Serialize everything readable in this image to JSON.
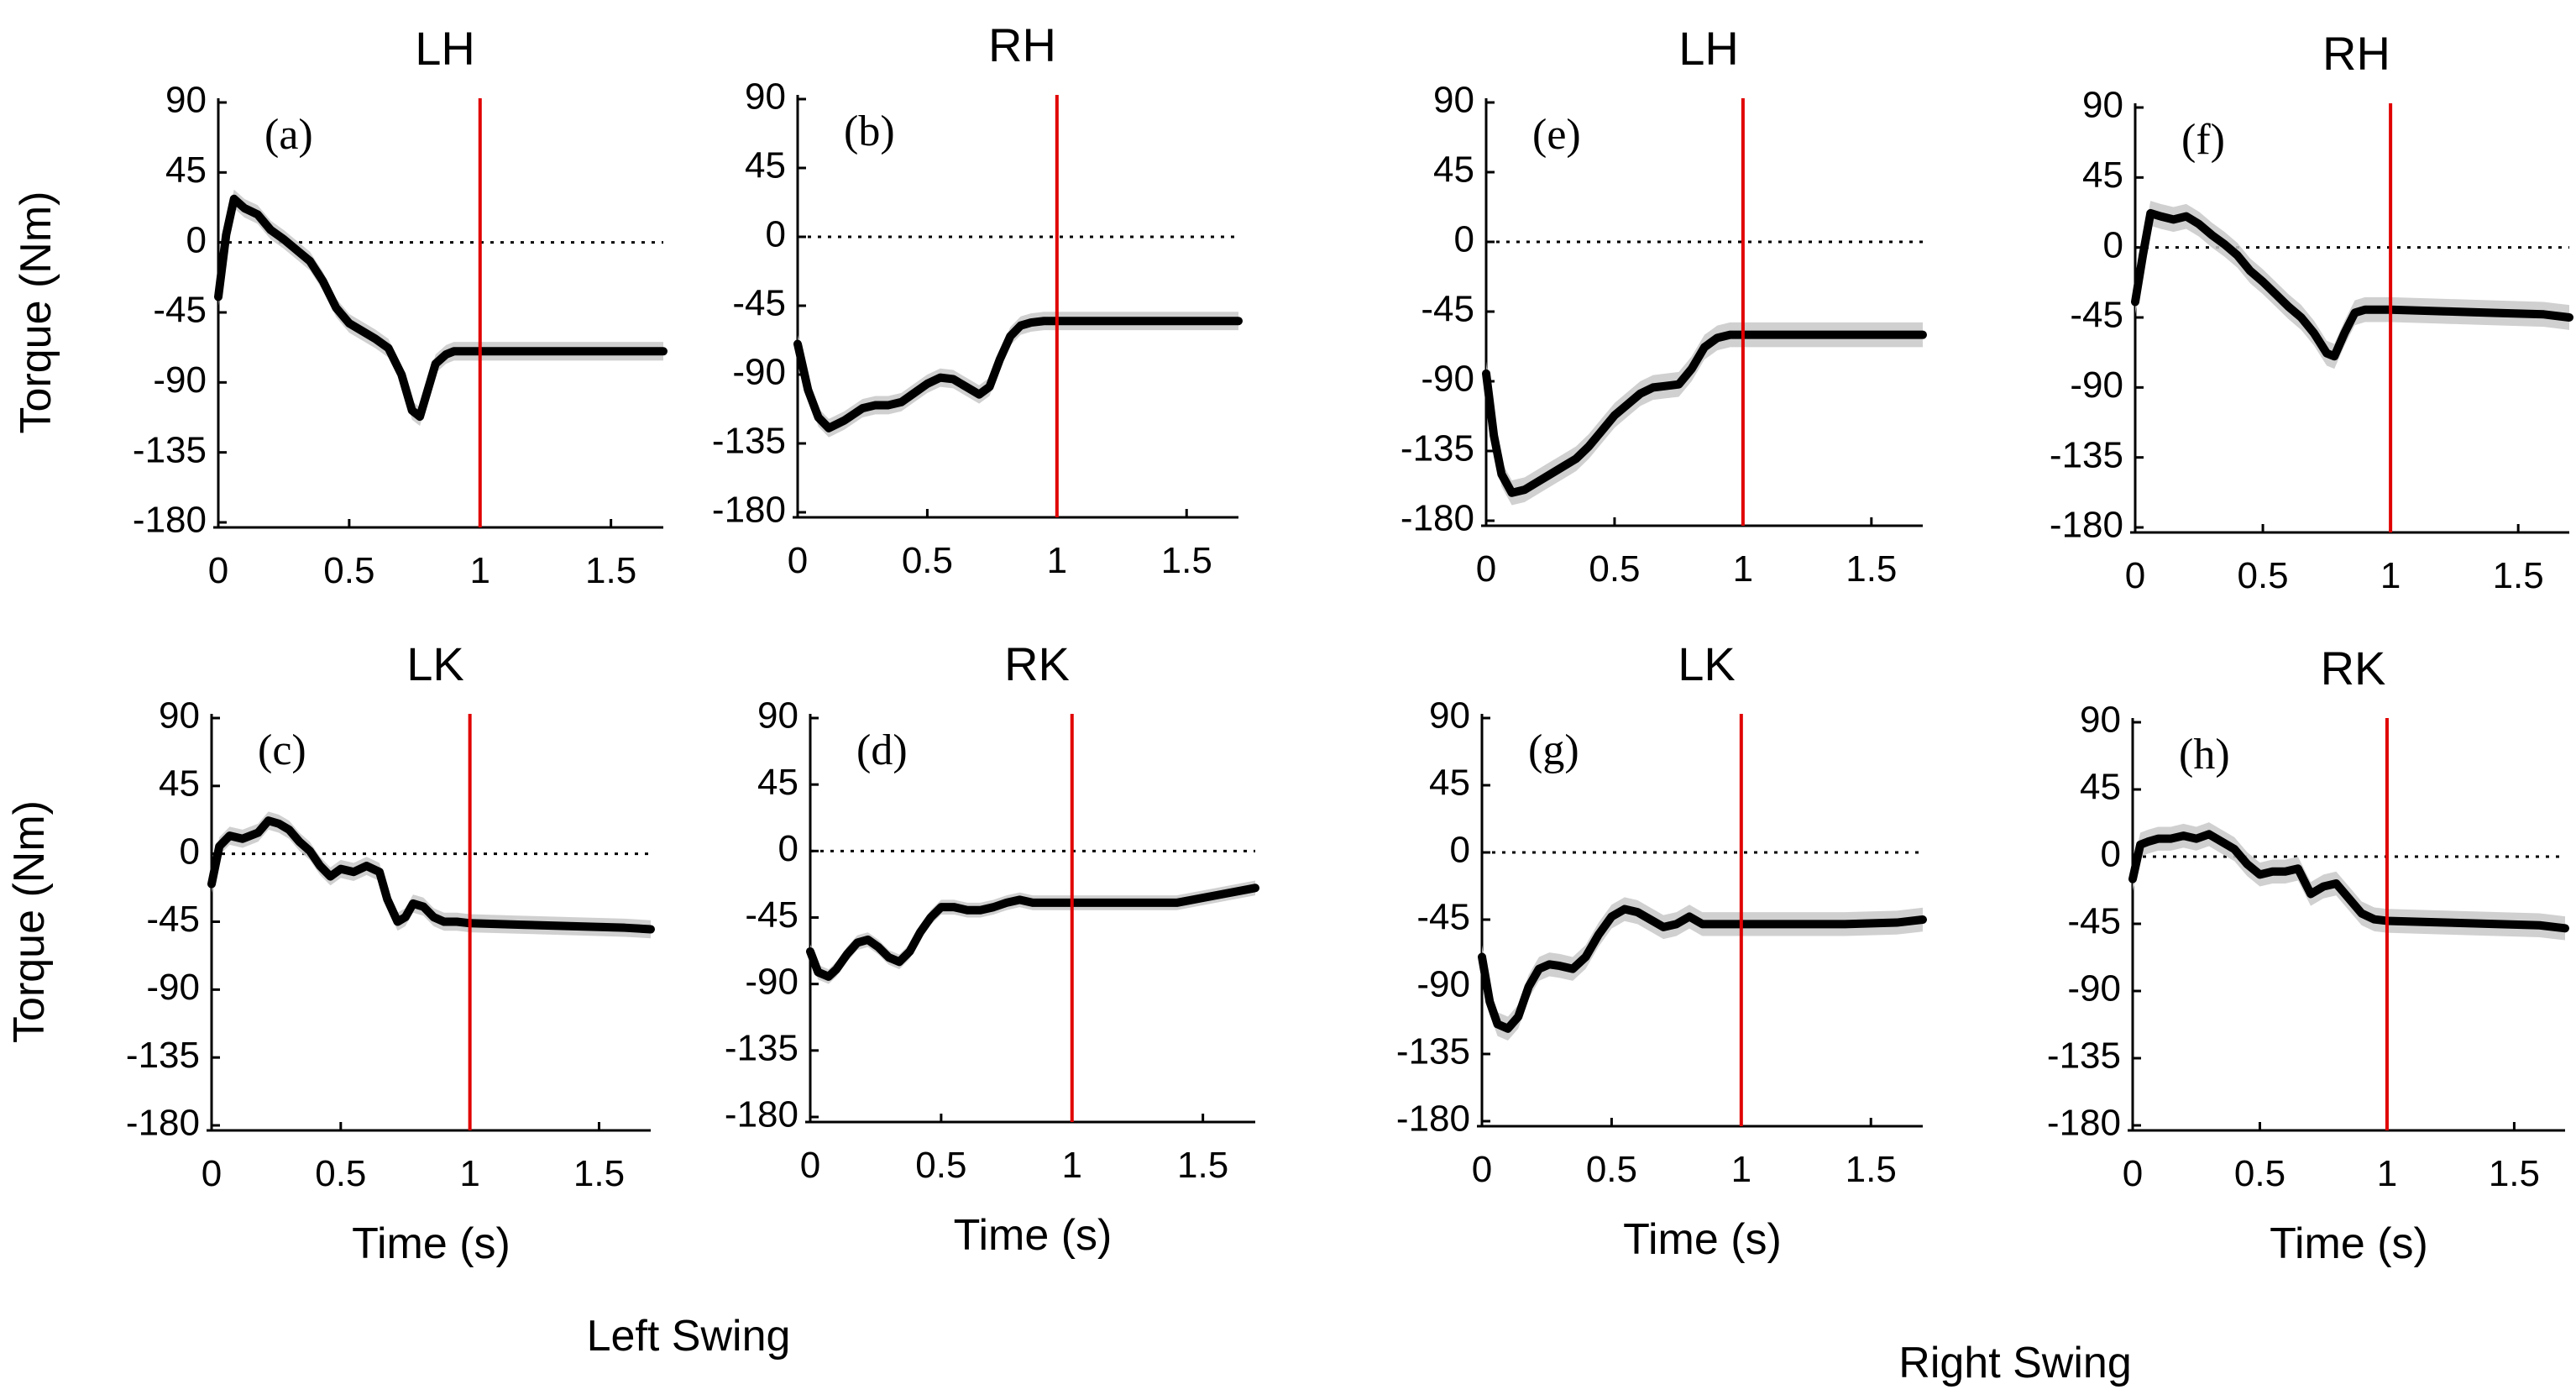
{
  "group_labels": {
    "left": "Left Swing",
    "right": "Right Swing"
  },
  "colors": {
    "reference_line": "#e00000",
    "mean_curve": "#000000",
    "band": "#c8c8c8"
  },
  "chart_data": [
    {
      "id": "a",
      "label": "(a)",
      "title": "LH",
      "type": "line",
      "ylabel": "Torque (Nm)",
      "xlabel": "",
      "xlim": [
        0,
        1.7
      ],
      "ylim": [
        -180,
        90
      ],
      "xticks": [
        0,
        0.5,
        1,
        1.5
      ],
      "xtick_labels": [
        "0",
        "0.5",
        "1",
        "1.5"
      ],
      "yticks": [
        90,
        45,
        0,
        -45,
        -90,
        -135,
        -180
      ],
      "ytick_labels": [
        "90",
        "45",
        "0",
        "-45",
        "-90",
        "-135",
        "-180"
      ],
      "reference_x": 1,
      "zero_line": true,
      "series": [
        {
          "x": [
            0,
            0.03,
            0.06,
            0.1,
            0.15,
            0.2,
            0.25,
            0.3,
            0.35,
            0.4,
            0.45,
            0.5,
            0.55,
            0.6,
            0.65,
            0.7,
            0.74,
            0.77,
            0.8,
            0.83,
            0.87,
            0.9,
            0.95,
            1.0,
            1.2,
            1.4,
            1.6,
            1.7
          ],
          "y": [
            -35,
            5,
            28,
            22,
            18,
            8,
            2,
            -5,
            -12,
            -25,
            -42,
            -52,
            -57,
            -62,
            -68,
            -85,
            -108,
            -112,
            -95,
            -78,
            -72,
            -70,
            -70,
            -70,
            -70,
            -70,
            -70,
            -70
          ],
          "band": 6
        }
      ]
    },
    {
      "id": "b",
      "label": "(b)",
      "title": "RH",
      "type": "line",
      "ylabel": "",
      "xlabel": "",
      "xlim": [
        0,
        1.7
      ],
      "ylim": [
        -180,
        90
      ],
      "xticks": [
        0,
        0.5,
        1,
        1.5
      ],
      "xtick_labels": [
        "0",
        "0.5",
        "1",
        "1.5"
      ],
      "yticks": [
        90,
        45,
        0,
        -45,
        -90,
        -135,
        -180
      ],
      "ytick_labels": [
        "90",
        "45",
        "0",
        "-45",
        "-90",
        "-135",
        "-180"
      ],
      "reference_x": 1,
      "zero_line": true,
      "series": [
        {
          "x": [
            0,
            0.04,
            0.08,
            0.12,
            0.18,
            0.25,
            0.3,
            0.35,
            0.4,
            0.45,
            0.5,
            0.55,
            0.6,
            0.65,
            0.7,
            0.74,
            0.78,
            0.82,
            0.86,
            0.9,
            0.95,
            1.0,
            1.3,
            1.7
          ],
          "y": [
            -70,
            -100,
            -118,
            -125,
            -120,
            -112,
            -110,
            -110,
            -108,
            -102,
            -96,
            -92,
            -93,
            -98,
            -103,
            -98,
            -80,
            -65,
            -58,
            -56,
            -55,
            -55,
            -55,
            -55
          ],
          "band": 6
        }
      ]
    },
    {
      "id": "c",
      "label": "(c)",
      "title": "LK",
      "type": "line",
      "ylabel": "Torque (Nm)",
      "xlabel": "Time (s)",
      "xlim": [
        0,
        1.7
      ],
      "ylim": [
        -180,
        90
      ],
      "xticks": [
        0,
        0.5,
        1,
        1.5
      ],
      "xtick_labels": [
        "0",
        "0.5",
        "1",
        "1.5"
      ],
      "yticks": [
        90,
        45,
        0,
        -45,
        -90,
        -135,
        -180
      ],
      "ytick_labels": [
        "90",
        "45",
        "0",
        "-45",
        "-90",
        "-135",
        "-180"
      ],
      "reference_x": 1,
      "zero_line": true,
      "series": [
        {
          "x": [
            0,
            0.03,
            0.07,
            0.12,
            0.18,
            0.22,
            0.26,
            0.3,
            0.34,
            0.38,
            0.42,
            0.46,
            0.5,
            0.55,
            0.6,
            0.65,
            0.68,
            0.72,
            0.75,
            0.78,
            0.82,
            0.86,
            0.9,
            0.95,
            1.0,
            1.2,
            1.4,
            1.6,
            1.7
          ],
          "y": [
            -20,
            5,
            12,
            10,
            14,
            22,
            20,
            16,
            8,
            2,
            -8,
            -15,
            -10,
            -12,
            -8,
            -12,
            -30,
            -45,
            -42,
            -33,
            -35,
            -42,
            -45,
            -45,
            -46,
            -47,
            -48,
            -49,
            -50
          ],
          "band": 6
        }
      ]
    },
    {
      "id": "d",
      "label": "(d)",
      "title": "RK",
      "type": "line",
      "ylabel": "",
      "xlabel": "Time (s)",
      "xlim": [
        0,
        1.7
      ],
      "ylim": [
        -180,
        90
      ],
      "xticks": [
        0,
        0.5,
        1,
        1.5
      ],
      "xtick_labels": [
        "0",
        "0.5",
        "1",
        "1.5"
      ],
      "yticks": [
        90,
        45,
        0,
        -45,
        -90,
        -135,
        -180
      ],
      "ytick_labels": [
        "90",
        "45",
        "0",
        "-45",
        "-90",
        "-135",
        "-180"
      ],
      "reference_x": 1,
      "zero_line": true,
      "series": [
        {
          "x": [
            0,
            0.03,
            0.07,
            0.1,
            0.14,
            0.18,
            0.22,
            0.26,
            0.3,
            0.34,
            0.38,
            0.42,
            0.46,
            0.5,
            0.55,
            0.6,
            0.65,
            0.7,
            0.75,
            0.8,
            0.85,
            0.9,
            0.95,
            1.0,
            1.2,
            1.4,
            1.55,
            1.7
          ],
          "y": [
            -68,
            -82,
            -85,
            -80,
            -70,
            -62,
            -60,
            -65,
            -72,
            -75,
            -68,
            -55,
            -45,
            -38,
            -38,
            -40,
            -40,
            -38,
            -35,
            -33,
            -35,
            -35,
            -35,
            -35,
            -35,
            -35,
            -30,
            -25
          ],
          "band": 5
        }
      ]
    },
    {
      "id": "e",
      "label": "(e)",
      "title": "LH",
      "type": "line",
      "ylabel": "",
      "xlabel": "",
      "xlim": [
        0,
        1.7
      ],
      "ylim": [
        -180,
        90
      ],
      "xticks": [
        0,
        0.5,
        1,
        1.5
      ],
      "xtick_labels": [
        "0",
        "0.5",
        "1",
        "1.5"
      ],
      "yticks": [
        90,
        45,
        0,
        -45,
        -90,
        -135,
        -180
      ],
      "ytick_labels": [
        "90",
        "45",
        "0",
        "-45",
        "-90",
        "-135",
        "-180"
      ],
      "reference_x": 1,
      "zero_line": true,
      "series": [
        {
          "x": [
            0,
            0.03,
            0.06,
            0.1,
            0.15,
            0.2,
            0.25,
            0.3,
            0.35,
            0.4,
            0.45,
            0.5,
            0.55,
            0.6,
            0.65,
            0.7,
            0.75,
            0.8,
            0.85,
            0.9,
            0.95,
            1.0,
            1.3,
            1.7
          ],
          "y": [
            -85,
            -125,
            -150,
            -162,
            -160,
            -155,
            -150,
            -145,
            -140,
            -132,
            -122,
            -112,
            -105,
            -98,
            -94,
            -93,
            -92,
            -82,
            -68,
            -62,
            -60,
            -60,
            -60,
            -60
          ],
          "band": 8
        }
      ]
    },
    {
      "id": "f",
      "label": "(f)",
      "title": "RH",
      "type": "line",
      "ylabel": "",
      "xlabel": "",
      "xlim": [
        0,
        1.7
      ],
      "ylim": [
        -180,
        90
      ],
      "xticks": [
        0,
        0.5,
        1,
        1.5
      ],
      "xtick_labels": [
        "0",
        "0.5",
        "1",
        "1.5"
      ],
      "yticks": [
        90,
        45,
        0,
        -45,
        -90,
        -135,
        -180
      ],
      "ytick_labels": [
        "90",
        "45",
        "0",
        "-45",
        "-90",
        "-135",
        "-180"
      ],
      "reference_x": 1,
      "zero_line": true,
      "series": [
        {
          "x": [
            0,
            0.03,
            0.06,
            0.1,
            0.15,
            0.2,
            0.25,
            0.3,
            0.35,
            0.4,
            0.45,
            0.5,
            0.55,
            0.6,
            0.65,
            0.7,
            0.75,
            0.78,
            0.82,
            0.86,
            0.9,
            0.95,
            1.0,
            1.2,
            1.4,
            1.6,
            1.7
          ],
          "y": [
            -35,
            -5,
            22,
            20,
            18,
            20,
            15,
            8,
            2,
            -5,
            -15,
            -22,
            -30,
            -38,
            -45,
            -55,
            -68,
            -70,
            -55,
            -42,
            -40,
            -40,
            -40,
            -41,
            -42,
            -43,
            -45
          ],
          "band": 8
        }
      ]
    },
    {
      "id": "g",
      "label": "(g)",
      "title": "LK",
      "type": "line",
      "ylabel": "",
      "xlabel": "Time (s)",
      "xlim": [
        0,
        1.7
      ],
      "ylim": [
        -180,
        90
      ],
      "xticks": [
        0,
        0.5,
        1,
        1.5
      ],
      "xtick_labels": [
        "0",
        "0.5",
        "1",
        "1.5"
      ],
      "yticks": [
        90,
        45,
        0,
        -45,
        -90,
        -135,
        -180
      ],
      "ytick_labels": [
        "90",
        "45",
        "0",
        "-45",
        "-90",
        "-135",
        "-180"
      ],
      "reference_x": 1,
      "zero_line": true,
      "series": [
        {
          "x": [
            0,
            0.03,
            0.06,
            0.1,
            0.14,
            0.18,
            0.22,
            0.26,
            0.3,
            0.35,
            0.4,
            0.45,
            0.5,
            0.55,
            0.6,
            0.65,
            0.7,
            0.75,
            0.8,
            0.85,
            0.9,
            0.95,
            1.0,
            1.2,
            1.4,
            1.6,
            1.7
          ],
          "y": [
            -70,
            -100,
            -115,
            -118,
            -110,
            -90,
            -78,
            -75,
            -76,
            -78,
            -70,
            -55,
            -43,
            -38,
            -40,
            -45,
            -50,
            -48,
            -43,
            -48,
            -48,
            -48,
            -48,
            -48,
            -48,
            -47,
            -45
          ],
          "band": 8
        }
      ]
    },
    {
      "id": "h",
      "label": "(h)",
      "title": "RK",
      "type": "line",
      "ylabel": "",
      "xlabel": "Time (s)",
      "xlim": [
        0,
        1.7
      ],
      "ylim": [
        -180,
        90
      ],
      "xticks": [
        0,
        0.5,
        1,
        1.5
      ],
      "xtick_labels": [
        "0",
        "0.5",
        "1",
        "1.5"
      ],
      "yticks": [
        90,
        45,
        0,
        -45,
        -90,
        -135,
        -180
      ],
      "ytick_labels": [
        "90",
        "45",
        "0",
        "-45",
        "-90",
        "-135",
        "-180"
      ],
      "reference_x": 1,
      "zero_line": true,
      "series": [
        {
          "x": [
            0,
            0.03,
            0.06,
            0.1,
            0.15,
            0.2,
            0.25,
            0.3,
            0.35,
            0.4,
            0.45,
            0.5,
            0.55,
            0.6,
            0.65,
            0.7,
            0.75,
            0.8,
            0.85,
            0.9,
            0.95,
            1.0,
            1.2,
            1.4,
            1.6,
            1.7
          ],
          "y": [
            -15,
            8,
            10,
            12,
            12,
            14,
            12,
            15,
            10,
            5,
            -5,
            -12,
            -10,
            -10,
            -8,
            -25,
            -20,
            -18,
            -28,
            -38,
            -42,
            -43,
            -44,
            -45,
            -46,
            -48
          ],
          "band": 8
        }
      ]
    }
  ]
}
